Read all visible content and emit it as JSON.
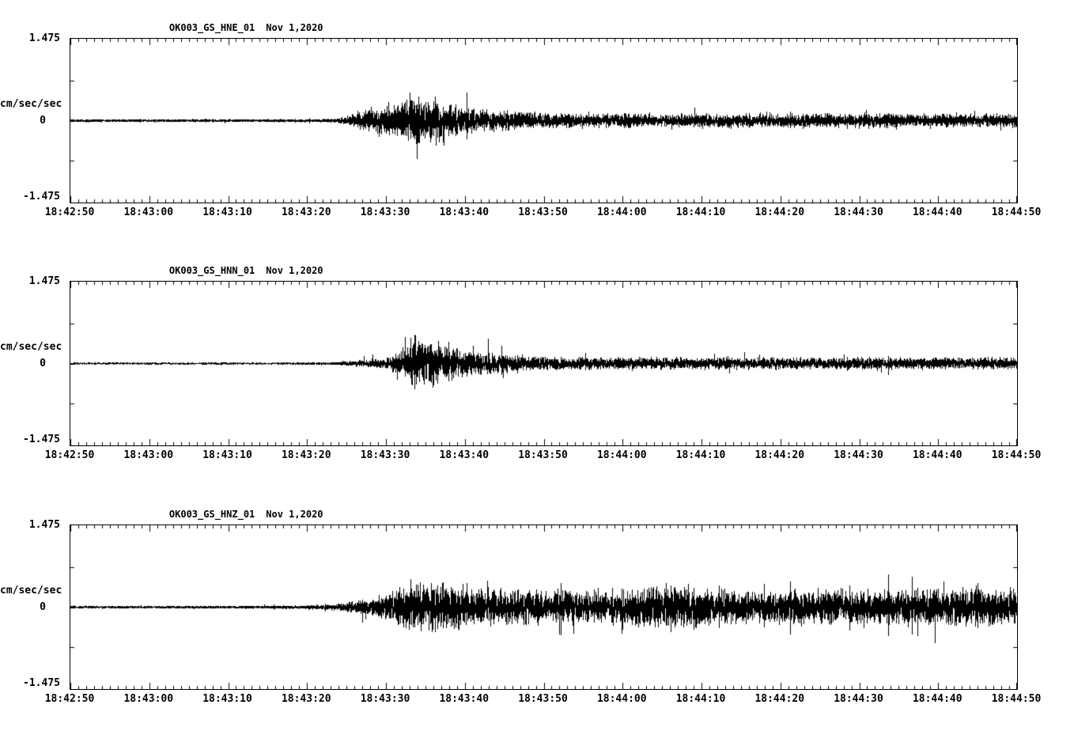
{
  "page": {
    "background_color": "#ffffff",
    "trace_color": "#000000",
    "text_color": "#000000"
  },
  "chart_data": [
    {
      "type": "line",
      "title": "OK003_GS_HNE_01",
      "date": "Nov 1,2020",
      "ylabel": "cm/sec/sec",
      "yticks": [
        "1.475",
        "0",
        "-1.475"
      ],
      "ylim": [
        -1.475,
        1.475
      ],
      "duration_seconds": 120,
      "x_major_interval_seconds": 10,
      "x_minor_interval_seconds": 1,
      "xtick_labels": [
        "18:42:50",
        "18:43:00",
        "18:43:10",
        "18:43:20",
        "18:43:30",
        "18:43:40",
        "18:43:50",
        "18:44:00",
        "18:44:10",
        "18:44:20",
        "18:44:30",
        "18:44:40",
        "18:44:50"
      ],
      "seed": 11,
      "envelope": [
        [
          0,
          0.025
        ],
        [
          25,
          0.025
        ],
        [
          31,
          0.03
        ],
        [
          34,
          0.045
        ],
        [
          35,
          0.1
        ],
        [
          36,
          0.18
        ],
        [
          38,
          0.3
        ],
        [
          40,
          0.34
        ],
        [
          42,
          0.44
        ],
        [
          43,
          0.58
        ],
        [
          44,
          0.62
        ],
        [
          45,
          0.52
        ],
        [
          46,
          0.56
        ],
        [
          47,
          0.46
        ],
        [
          48,
          0.4
        ],
        [
          50,
          0.3
        ],
        [
          52,
          0.27
        ],
        [
          55,
          0.22
        ],
        [
          58,
          0.2
        ],
        [
          62,
          0.17
        ],
        [
          66,
          0.15
        ],
        [
          70,
          0.17
        ],
        [
          74,
          0.14
        ],
        [
          78,
          0.17
        ],
        [
          82,
          0.15
        ],
        [
          86,
          0.17
        ],
        [
          90,
          0.15
        ],
        [
          94,
          0.17
        ],
        [
          98,
          0.15
        ],
        [
          102,
          0.17
        ],
        [
          106,
          0.15
        ],
        [
          110,
          0.17
        ],
        [
          114,
          0.15
        ],
        [
          120,
          0.16
        ]
      ]
    },
    {
      "type": "line",
      "title": "OK003_GS_HNN_01",
      "date": "Nov 1,2020",
      "ylabel": "cm/sec/sec",
      "yticks": [
        "1.475",
        "0",
        "-1.475"
      ],
      "ylim": [
        -1.475,
        1.475
      ],
      "duration_seconds": 120,
      "x_major_interval_seconds": 10,
      "x_minor_interval_seconds": 1,
      "xtick_labels": [
        "18:42:50",
        "18:43:00",
        "18:43:10",
        "18:43:20",
        "18:43:30",
        "18:43:40",
        "18:43:50",
        "18:44:00",
        "18:44:10",
        "18:44:20",
        "18:44:30",
        "18:44:40",
        "18:44:50"
      ],
      "seed": 22,
      "envelope": [
        [
          0,
          0.015
        ],
        [
          25,
          0.015
        ],
        [
          31,
          0.02
        ],
        [
          34,
          0.03
        ],
        [
          36,
          0.06
        ],
        [
          38,
          0.1
        ],
        [
          40,
          0.16
        ],
        [
          42,
          0.3
        ],
        [
          43,
          0.5
        ],
        [
          44,
          0.58
        ],
        [
          45,
          0.5
        ],
        [
          46,
          0.56
        ],
        [
          47,
          0.44
        ],
        [
          48,
          0.38
        ],
        [
          50,
          0.3
        ],
        [
          52,
          0.26
        ],
        [
          54,
          0.22
        ],
        [
          57,
          0.18
        ],
        [
          60,
          0.16
        ],
        [
          64,
          0.14
        ],
        [
          68,
          0.13
        ],
        [
          72,
          0.14
        ],
        [
          76,
          0.15
        ],
        [
          80,
          0.13
        ],
        [
          84,
          0.14
        ],
        [
          88,
          0.13
        ],
        [
          92,
          0.14
        ],
        [
          96,
          0.13
        ],
        [
          100,
          0.14
        ],
        [
          104,
          0.13
        ],
        [
          108,
          0.14
        ],
        [
          112,
          0.13
        ],
        [
          116,
          0.14
        ],
        [
          120,
          0.13
        ]
      ]
    },
    {
      "type": "line",
      "title": "OK003_GS_HNZ_01",
      "date": "Nov 1,2020",
      "ylabel": "cm/sec/sec",
      "yticks": [
        "1.475",
        "0",
        "-1.475"
      ],
      "ylim": [
        -1.475,
        1.475
      ],
      "duration_seconds": 120,
      "x_major_interval_seconds": 10,
      "x_minor_interval_seconds": 1,
      "xtick_labels": [
        "18:42:50",
        "18:43:00",
        "18:43:10",
        "18:43:20",
        "18:43:30",
        "18:43:40",
        "18:43:50",
        "18:44:00",
        "18:44:10",
        "18:44:20",
        "18:44:30",
        "18:44:40",
        "18:44:50"
      ],
      "seed": 33,
      "envelope": [
        [
          0,
          0.02
        ],
        [
          24,
          0.025
        ],
        [
          29,
          0.035
        ],
        [
          32,
          0.05
        ],
        [
          34,
          0.08
        ],
        [
          36,
          0.13
        ],
        [
          38,
          0.2
        ],
        [
          40,
          0.3
        ],
        [
          42,
          0.45
        ],
        [
          43,
          0.6
        ],
        [
          44,
          0.68
        ],
        [
          45,
          0.6
        ],
        [
          47,
          0.56
        ],
        [
          49,
          0.52
        ],
        [
          51,
          0.48
        ],
        [
          54,
          0.44
        ],
        [
          57,
          0.4
        ],
        [
          60,
          0.38
        ],
        [
          63,
          0.42
        ],
        [
          66,
          0.38
        ],
        [
          69,
          0.4
        ],
        [
          72,
          0.44
        ],
        [
          75,
          0.5
        ],
        [
          77,
          0.56
        ],
        [
          79,
          0.48
        ],
        [
          81,
          0.42
        ],
        [
          84,
          0.4
        ],
        [
          88,
          0.38
        ],
        [
          92,
          0.42
        ],
        [
          96,
          0.44
        ],
        [
          100,
          0.4
        ],
        [
          104,
          0.38
        ],
        [
          108,
          0.42
        ],
        [
          112,
          0.44
        ],
        [
          116,
          0.42
        ],
        [
          120,
          0.42
        ]
      ]
    }
  ]
}
